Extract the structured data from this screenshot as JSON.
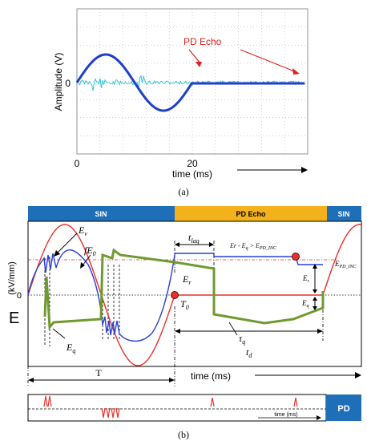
{
  "chart_data": [
    {
      "id": "a",
      "type": "line",
      "panel_label": "(a)",
      "xlabel": "time (ms)",
      "ylabel": "Amplitude  (V)",
      "x_ticks": [
        "0",
        "20"
      ],
      "y_ticks": [
        "0"
      ],
      "annotation": "PD Echo",
      "grid": true,
      "colors": {
        "sine": "#1f3fc4",
        "noise": "#33c6d6",
        "annotation": "#e0201e",
        "grid": "#9aa0a6"
      }
    },
    {
      "id": "b",
      "type": "line",
      "panel_label": "(b)",
      "xlabel": "time (ms)",
      "ylabel": "E",
      "ylabel_unit": "(kV/mm)",
      "y_ticks": [
        "0"
      ],
      "phase_bar": [
        "SIN",
        "PD Echo",
        "SIN"
      ],
      "labels": {
        "ev": "E",
        "ev_sub": "v",
        "fe0": "fE",
        "fe0_sub": "0",
        "eq": "E",
        "eq_sub": "q",
        "er": "E",
        "er_sub": "r",
        "t0": "T",
        "t0_sub": "0",
        "tlag": "t",
        "tlag_sub": "lag",
        "tauq": "τ",
        "tauq_sub": "q",
        "td": "t",
        "td_sub": "d",
        "period": "T",
        "condition": "E",
        "condition_tail": "r - E",
        "condition_sub": "q",
        "condition_gt": " > E",
        "condition_sub2": "PD_INC",
        "epdinc": "E",
        "epdinc_sub": "PD_INC",
        "er2": "E",
        "er2_sub": "r",
        "eq2": "E",
        "eq2_sub": "q"
      },
      "colors": {
        "applied": "#e8302a",
        "local": "#2a3fd6",
        "charge": "#6f9a2f",
        "sin_bar": "#1f6fb8",
        "echo_bar": "#f3b21b"
      },
      "pd_strip": {
        "label": "PD",
        "xlabel": "time (ms)",
        "pulse_color": "#e8302a",
        "label_bg": "#1f6fb8"
      }
    }
  ]
}
